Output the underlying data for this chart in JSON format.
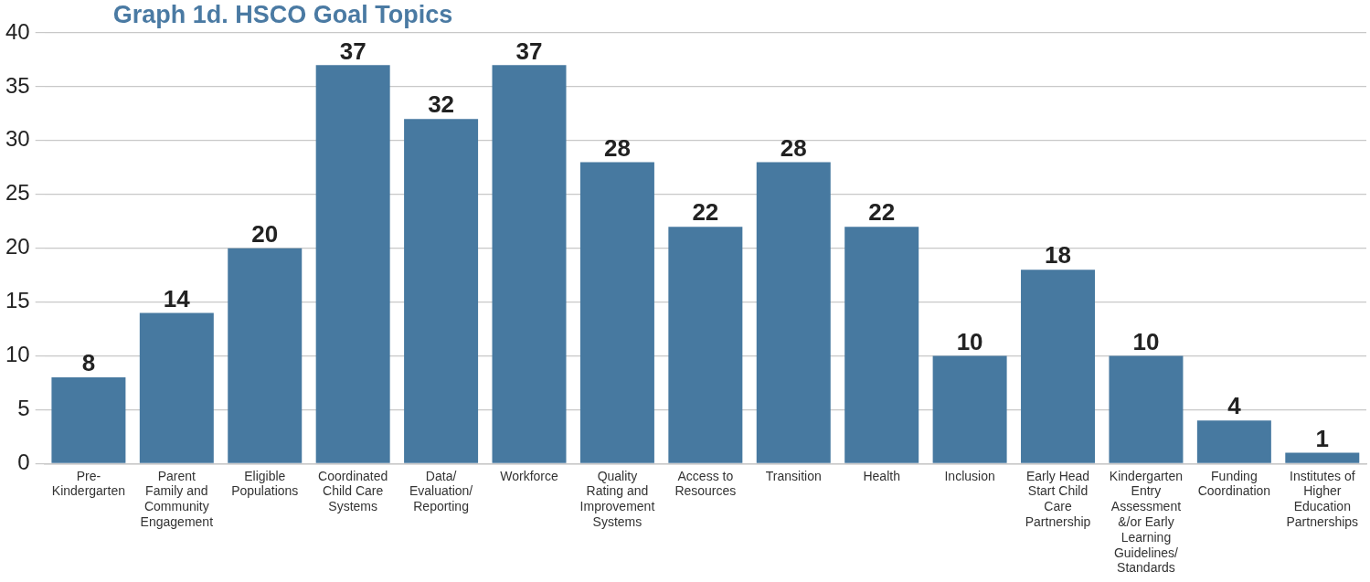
{
  "chart_data": {
    "type": "bar",
    "title": "Graph 1d. HSCO Goal Topics",
    "categories": [
      "Pre- Kindergarten",
      "Parent Family and Community Engagement",
      "Eligible Populations",
      "Coordinated Child Care Systems",
      "Data/ Evaluation/ Reporting",
      "Workforce",
      "Quality Rating and Improvement Systems",
      "Access to Resources",
      "Transition",
      "Health",
      "Inclusion",
      "Early Head Start Child Care Partnership",
      "Kindergarten Entry Assessment &/or Early Learning Guidelines/ Standards",
      "Funding Coordination",
      "Institutes of Higher Education Partnerships"
    ],
    "values": [
      8,
      14,
      20,
      37,
      32,
      37,
      28,
      22,
      28,
      22,
      10,
      18,
      10,
      4,
      1
    ],
    "color": "#4779a0",
    "ylim": [
      0,
      40
    ],
    "yticks": [
      0,
      5,
      10,
      15,
      20,
      25,
      30,
      35,
      40
    ],
    "grid": "y",
    "data_labels": true
  }
}
